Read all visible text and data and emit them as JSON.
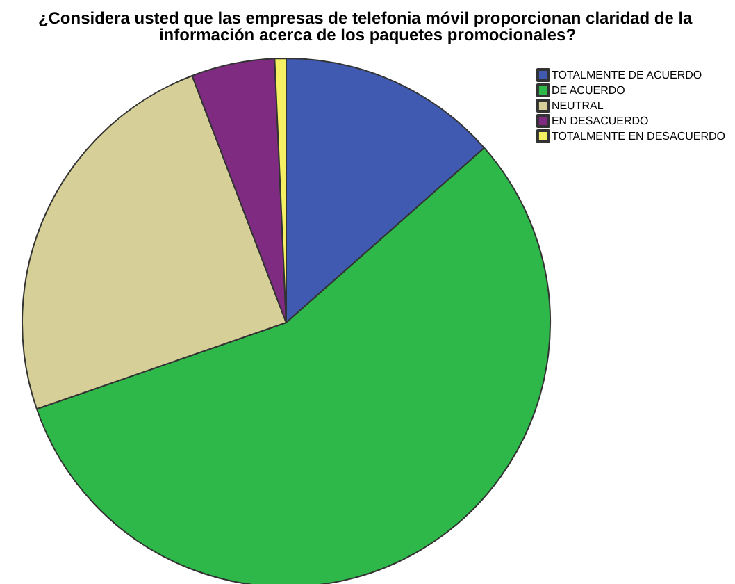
{
  "chart_data": {
    "type": "pie",
    "title": "¿Considera usted que las empresas de telefonia móvil proporcionan claridad de la información acerca de los paquetes promocionales?",
    "categories": [
      "TOTALMENTE DE ACUERDO",
      "DE ACUERDO",
      "NEUTRAL",
      "EN DESACUERDO",
      "TOTALMENTE EN DESACUERDO"
    ],
    "values": [
      13.5,
      56.2,
      24.5,
      5.1,
      0.7
    ],
    "colors": [
      "#3f5ab0",
      "#2eb84a",
      "#d6cf98",
      "#7f2b82",
      "#f5f063"
    ],
    "legend": "top right"
  }
}
